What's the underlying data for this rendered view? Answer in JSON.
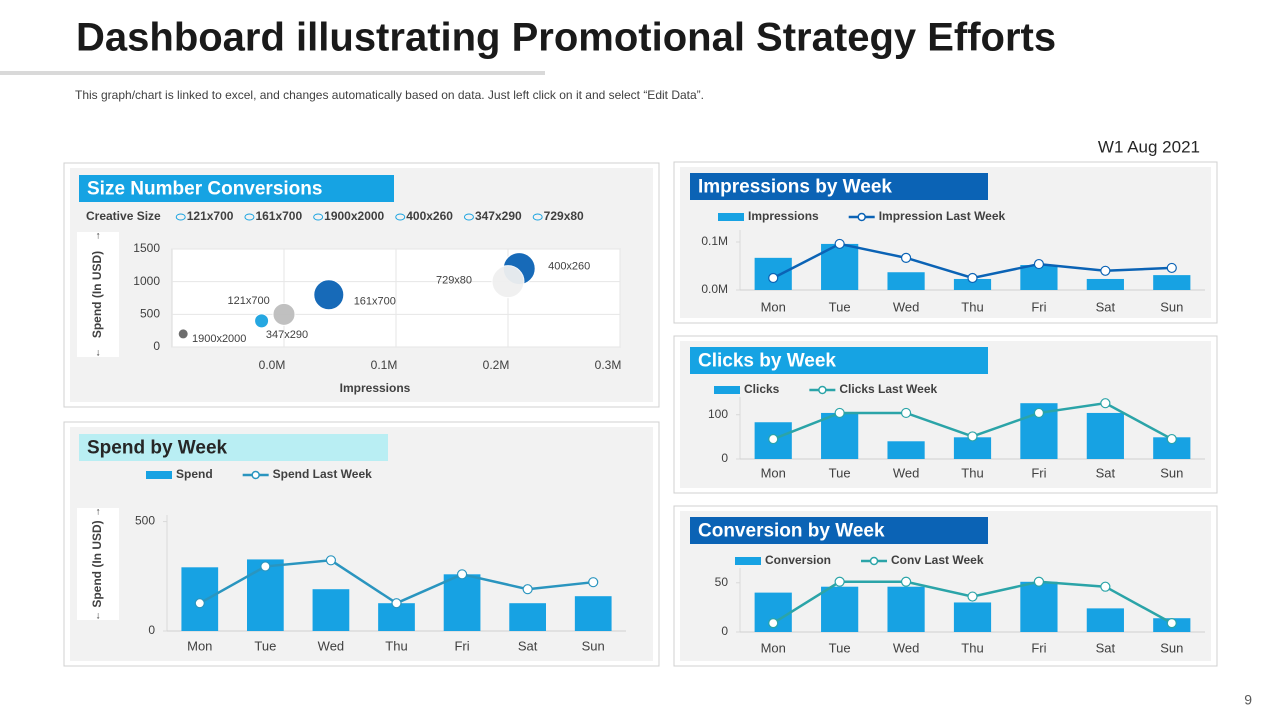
{
  "header": {
    "title": "Dashboard illustrating Promotional Strategy Efforts",
    "note": "This graph/chart is linked to excel, and changes automatically based on data. Just left click on it and select “Edit Data”.",
    "date": "W1 Aug 2021"
  },
  "page_number": 9,
  "chart_data": [
    {
      "type": "bubble",
      "title": "Size Number Conversions",
      "legend_title": "Creative Size",
      "xlabel": "Impressions",
      "ylabel": "Spend (In USD)",
      "xlim": [
        -100000,
        300000
      ],
      "xticks": [
        {
          "value": 0,
          "label": "0.0M"
        },
        {
          "value": 100000,
          "label": "0.1M"
        },
        {
          "value": 200000,
          "label": "0.2M"
        },
        {
          "value": 300000,
          "label": "0.3M"
        }
      ],
      "ylim": [
        0,
        1500
      ],
      "yticks": [
        0,
        500,
        1000,
        1500
      ],
      "grid": true,
      "series": [
        {
          "name": "121x700",
          "color": "#1aa3e0",
          "x": [
            -20000
          ],
          "values": [
            400
          ],
          "sizes": [
            49
          ]
        },
        {
          "name": "161x700",
          "color": "#0b63b5",
          "x": [
            40000
          ],
          "values": [
            800
          ],
          "sizes": [
            225
          ]
        },
        {
          "name": "1900x2000",
          "color": "#666666",
          "x": [
            -90000
          ],
          "values": [
            200
          ],
          "sizes": [
            25
          ]
        },
        {
          "name": "400x260",
          "color": "#0b63b5",
          "x": [
            210000
          ],
          "values": [
            1200
          ],
          "sizes": [
            256
          ]
        },
        {
          "name": "347x290",
          "color": "#bdbdbd",
          "x": [
            0
          ],
          "values": [
            500
          ],
          "sizes": [
            121
          ]
        },
        {
          "name": "729x80",
          "color": "#f0f0f0",
          "x": [
            200000
          ],
          "values": [
            1000
          ],
          "sizes": [
            256
          ]
        }
      ]
    },
    {
      "type": "bar",
      "title": "Impressions by Week",
      "categories": [
        "Mon",
        "Tue",
        "Wed",
        "Thu",
        "Fri",
        "Sat",
        "Sun"
      ],
      "ylim": [
        0,
        125000
      ],
      "yticks": [
        {
          "value": 0,
          "label": "0.0M"
        },
        {
          "value": 100000,
          "label": "0.1M"
        }
      ],
      "series": [
        {
          "name": "Impressions",
          "type": "bar",
          "color": "#17a2e3",
          "values": [
            67000,
            96000,
            37000,
            23000,
            52000,
            23000,
            31000
          ]
        },
        {
          "name": "Impression Last Week",
          "type": "line",
          "color": "#0b63b5",
          "values": [
            25000,
            96000,
            67000,
            25000,
            54000,
            40000,
            46000
          ]
        }
      ]
    },
    {
      "type": "bar",
      "title": "Clicks by Week",
      "categories": [
        "Mon",
        "Tue",
        "Wed",
        "Thu",
        "Fri",
        "Sat",
        "Sun"
      ],
      "ylim": [
        0,
        140
      ],
      "yticks": [
        0,
        100
      ],
      "series": [
        {
          "name": "Clicks",
          "type": "bar",
          "color": "#17a2e3",
          "values": [
            83,
            104,
            40,
            49,
            126,
            104,
            49
          ]
        },
        {
          "name": "Clicks Last Week",
          "type": "line",
          "color": "#2ba4a8",
          "values": [
            45,
            104,
            104,
            51,
            104,
            126,
            45
          ]
        }
      ]
    },
    {
      "type": "bar",
      "title": "Conversion by Week",
      "categories": [
        "Mon",
        "Tue",
        "Wed",
        "Thu",
        "Fri",
        "Sat",
        "Sun"
      ],
      "ylim": [
        0,
        65
      ],
      "yticks": [
        0,
        50
      ],
      "series": [
        {
          "name": "Conversion",
          "type": "bar",
          "color": "#17a2e3",
          "values": [
            40,
            46,
            46,
            30,
            51,
            24,
            14
          ]
        },
        {
          "name": "Conv Last Week",
          "type": "line",
          "color": "#2ba4a8",
          "values": [
            9,
            51,
            51,
            36,
            51,
            46,
            9
          ]
        }
      ]
    },
    {
      "type": "bar",
      "title": "Spend by Week",
      "ylabel": "Spend (In USD)",
      "categories": [
        "Mon",
        "Tue",
        "Wed",
        "Thu",
        "Fri",
        "Sat",
        "Sun"
      ],
      "ylim": [
        0,
        530
      ],
      "yticks": [
        0,
        500
      ],
      "series": [
        {
          "name": "Spend",
          "type": "bar",
          "color": "#17a2e3",
          "values": [
            291,
            327,
            191,
            127,
            259,
            127,
            159
          ]
        },
        {
          "name": "Spend Last Week",
          "type": "line",
          "color": "#2a95bf",
          "values": [
            127,
            295,
            323,
            127,
            259,
            191,
            223
          ]
        }
      ]
    }
  ]
}
